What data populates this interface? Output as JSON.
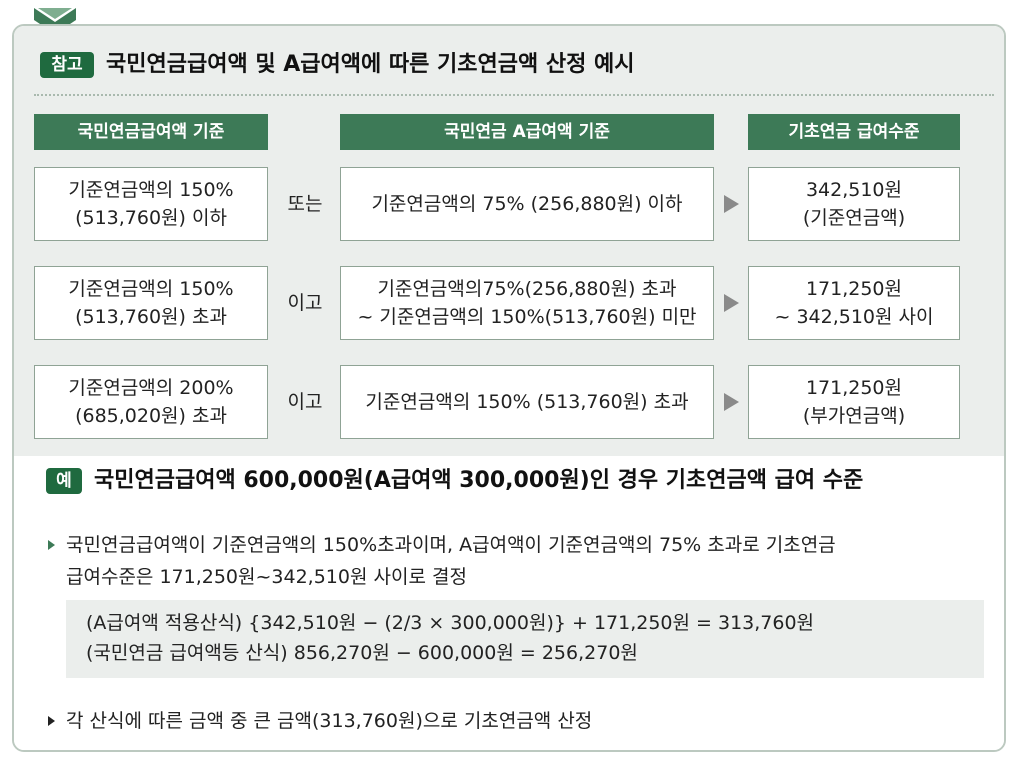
{
  "header": {
    "badge": "참고",
    "title": "국민연금급여액 및 A급여액에 따른 기초연금액 산정 예시"
  },
  "columns": {
    "col1": "국민연금급여액 기준",
    "col2": "국민연금 A급여액 기준",
    "col3": "기초연금 급여수준"
  },
  "rows": [
    {
      "col1_line1": "기준연금액의 150%",
      "col1_line2": "(513,760원) 이하",
      "connector": "또는",
      "col2_line1": "기준연금액의 75% (256,880원) 이하",
      "col2_line2": "",
      "col3_line1": "342,510원",
      "col3_line2": "(기준연금액)"
    },
    {
      "col1_line1": "기준연금액의 150%",
      "col1_line2": "(513,760원) 초과",
      "connector": "이고",
      "col2_line1": "기준연금액의75%(256,880원) 초과",
      "col2_line2": "~ 기준연금액의 150%(513,760원) 미만",
      "col3_line1": "171,250원",
      "col3_line2": "~ 342,510원 사이"
    },
    {
      "col1_line1": "기준연금액의 200%",
      "col1_line2": "(685,020원) 초과",
      "connector": "이고",
      "col2_line1": "기준연금액의 150% (513,760원) 초과",
      "col2_line2": "",
      "col3_line1": "171,250원",
      "col3_line2": "(부가연금액)"
    }
  ],
  "example": {
    "badge": "예",
    "title": "국민연금급여액 600,000원(A급여액 300,000원)인 경우 기초연금액 급여 수준",
    "bullet1_line1": "국민연금급여액이 기준연금액의 150%초과이며, A급여액이 기준연금액의 75% 초과로 기초연금",
    "bullet1_line2": "급여수준은 171,250원~342,510원 사이로 결정",
    "calc_line1": "(A급여액 적용산식) {342,510원 − (2/3 × 300,000원)} + 171,250원 = 313,760원",
    "calc_line2": "(국민연금 급여액등 산식) 856,270원 − 600,000원 = 256,270원",
    "bullet2": "각 산식에 따른 금액 중 큰 금액(313,760원)으로 기초연금액 산정"
  },
  "colors": {
    "accent_dark": "#1f6a3f",
    "accent": "#3d7a57",
    "panel_bg": "#ebeeec",
    "border": "#bcc9c0"
  }
}
